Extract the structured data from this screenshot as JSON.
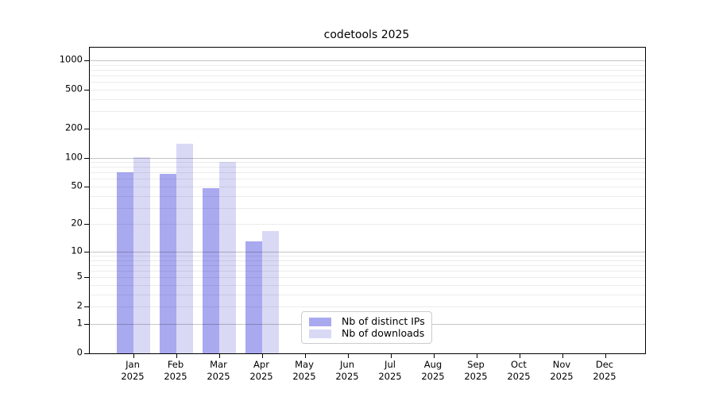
{
  "chart_data": {
    "type": "bar",
    "title": "codetools 2025",
    "categories": [
      "Jan",
      "Feb",
      "Mar",
      "Apr",
      "May",
      "Jun",
      "Jul",
      "Aug",
      "Sep",
      "Oct",
      "Nov",
      "Dec"
    ],
    "year_label": "2025",
    "series": [
      {
        "name": "Nb of distinct IPs",
        "color": "#a9a9f0",
        "values": [
          70,
          68,
          48,
          13,
          0,
          0,
          0,
          0,
          0,
          0,
          0,
          0
        ]
      },
      {
        "name": "Nb of downloads",
        "color": "#d9d9f6",
        "values": [
          100,
          140,
          90,
          17,
          0,
          0,
          0,
          0,
          0,
          0,
          0,
          0
        ]
      }
    ],
    "yticks": [
      0,
      1,
      2,
      5,
      10,
      20,
      50,
      100,
      200,
      500,
      1000
    ],
    "yscale": "log10(value+1)",
    "ylim": [
      0,
      1350
    ],
    "grid": "horizontal, minor lines per 1-9 step within each decade, major lines at 1/10/100/1000",
    "legend_position": "inside bottom-center",
    "xlabel": "",
    "ylabel": ""
  }
}
